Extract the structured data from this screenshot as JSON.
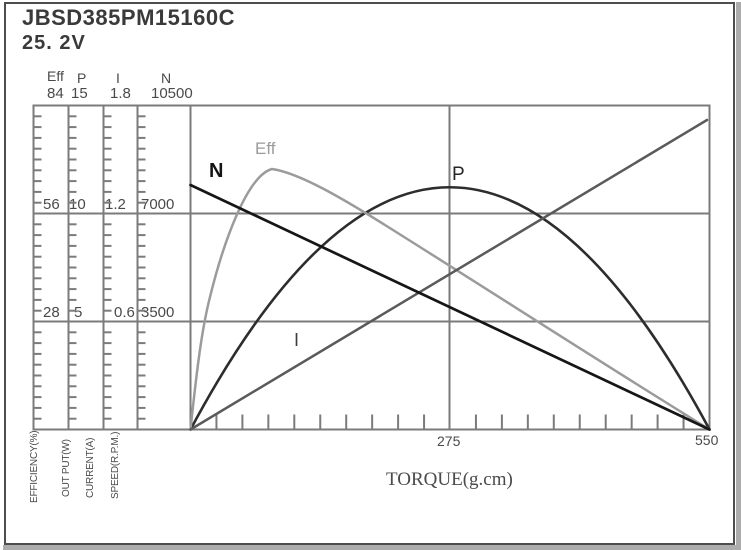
{
  "header": {
    "model": "JBSD385PM15160C",
    "voltage": "25. 2V"
  },
  "scales": {
    "columns": [
      {
        "name": "Eff",
        "max": "84",
        "mid": "56",
        "low": "28",
        "axis_label": "EFFICIENCY(%)"
      },
      {
        "name": "P",
        "max": "15",
        "mid": "10",
        "low": "5",
        "axis_label": "OUT PUT(W)"
      },
      {
        "name": "I",
        "max": "1.8",
        "mid": "1.2",
        "low": "0.6",
        "axis_label": "CURRENT(A)"
      },
      {
        "name": "N",
        "max": "10500",
        "mid": "7000",
        "low": "3500",
        "axis_label": "SPEED(R.P.M.)"
      }
    ]
  },
  "x_axis": {
    "label": "TORQUE(g.cm)",
    "tick_mid": "275",
    "tick_max": "550"
  },
  "curve_labels": {
    "speed": "N",
    "efficiency": "Eff",
    "power": "P",
    "current": "I"
  },
  "colors": {
    "speed_curve": "#161616",
    "power_curve": "#2d2d2d",
    "current_curve": "#5a5a5a",
    "efficiency_curve": "#9b9b9b",
    "grid": "#7b7b7b",
    "frame_border": "#4d4d4d",
    "text": "#4a4a4a"
  },
  "chart_data": {
    "type": "line",
    "title": "JBSD385PM15160C 25.2V motor performance curves",
    "xlabel": "TORQUE(g.cm)",
    "x_range": [
      0,
      550
    ],
    "x_ticks": [
      0,
      275,
      550
    ],
    "x_minor_tick_step": 27.5,
    "grid": true,
    "legend_position": "inline-labels",
    "axes": [
      {
        "symbol": "Eff",
        "name": "EFFICIENCY(%)",
        "range": [
          0,
          84
        ],
        "ticks": [
          28,
          56,
          84
        ]
      },
      {
        "symbol": "P",
        "name": "OUT PUT(W)",
        "range": [
          0,
          15
        ],
        "ticks": [
          5,
          10,
          15
        ]
      },
      {
        "symbol": "I",
        "name": "CURRENT(A)",
        "range": [
          0,
          1.8
        ],
        "ticks": [
          0.6,
          1.2,
          1.8
        ]
      },
      {
        "symbol": "N",
        "name": "SPEED(R.P.M.)",
        "range": [
          0,
          10500
        ],
        "ticks": [
          3500,
          7000,
          10500
        ]
      }
    ],
    "series": [
      {
        "name": "N",
        "unit": "R.P.M.",
        "shape": "linear",
        "points": [
          [
            0,
            7950
          ],
          [
            275,
            4000
          ],
          [
            550,
            0
          ]
        ]
      },
      {
        "name": "I",
        "unit": "A",
        "shape": "linear",
        "points": [
          [
            0,
            0
          ],
          [
            275,
            0.85
          ],
          [
            550,
            1.7
          ]
        ]
      },
      {
        "name": "P",
        "unit": "W",
        "shape": "parabola",
        "points": [
          [
            0,
            0
          ],
          [
            137.5,
            8.4
          ],
          [
            275,
            11.2
          ],
          [
            412.5,
            8.4
          ],
          [
            550,
            0
          ]
        ]
      },
      {
        "name": "Eff",
        "unit": "%",
        "shape": "curve",
        "points": [
          [
            0,
            0
          ],
          [
            20,
            28
          ],
          [
            45,
            56
          ],
          [
            86,
            67.5
          ],
          [
            205,
            53
          ],
          [
            380,
            28
          ],
          [
            550,
            0
          ]
        ]
      }
    ]
  }
}
